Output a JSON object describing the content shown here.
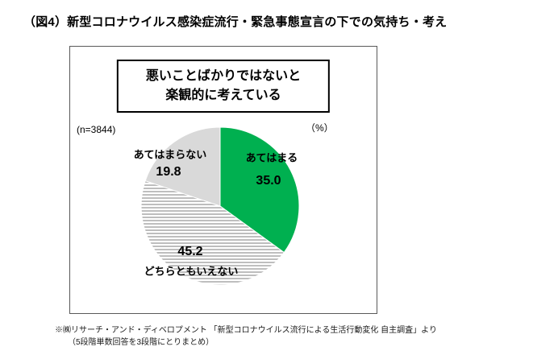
{
  "page": {
    "title": "（図4）新型コロナウイルス感染症流行・緊急事態宣言の下での気持ち・考え",
    "footnote_line1": "※㈱リサーチ・アンド・ディベロプメント 「新型コロナウイルス流行による生活行動変化 自主調査」より",
    "footnote_line2": "（5段階単数回答を3段階にとりまとめ）"
  },
  "chart_data": {
    "type": "pie",
    "title": "悪いことばかりではないと楽観的に考えている",
    "callout_line1": "悪いことばかりではないと",
    "callout_line2": "楽観的に考えている",
    "n_label": "(n=3844)",
    "unit_label": "（%）",
    "start_angle_deg": 0,
    "direction": "clockwise",
    "slices": [
      {
        "label": "あてはまる",
        "value": 35.0,
        "value_label": "35.0",
        "fill": "solid",
        "color": "#00B050"
      },
      {
        "label": "どちらともいえない",
        "value": 45.2,
        "value_label": "45.2",
        "fill": "hatch-horizontal",
        "color": "#FFFFFF",
        "hatch_color": "#B3B3B3"
      },
      {
        "label": "あてはまらない",
        "value": 19.8,
        "value_label": "19.8",
        "fill": "solid",
        "color": "#D9D9D9"
      }
    ]
  }
}
